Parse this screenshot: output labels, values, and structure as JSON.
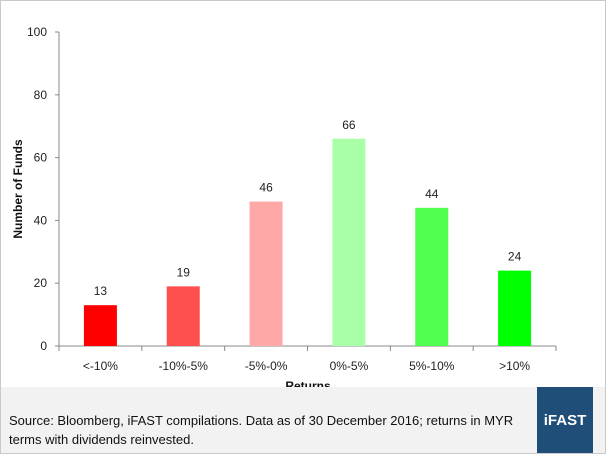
{
  "chart_data": {
    "type": "bar",
    "categories": [
      "<-10%",
      "-10%-5%",
      "-5%-0%",
      "0%-5%",
      "5%-10%",
      ">10%"
    ],
    "values": [
      13,
      19,
      46,
      66,
      44,
      24
    ],
    "bar_colors": [
      "#ff0000",
      "#ff5050",
      "#ffa8a8",
      "#a8ffa8",
      "#50ff50",
      "#00ff00"
    ],
    "title": "",
    "xlabel": "Returns",
    "ylabel": "Number of Funds",
    "ylim": [
      0,
      100
    ],
    "yticks": [
      0,
      20,
      40,
      60,
      80,
      100
    ],
    "grid": false,
    "legend": "none",
    "data_labels": true
  },
  "footer": {
    "source": "Source: Bloomberg, iFAST compilations. Data as of 30 December 2016; returns in MYR terms with dividends reinvested.",
    "logo_text": "iFAST",
    "background": "#f2f2f2",
    "logo_color": "#1f4e79"
  }
}
